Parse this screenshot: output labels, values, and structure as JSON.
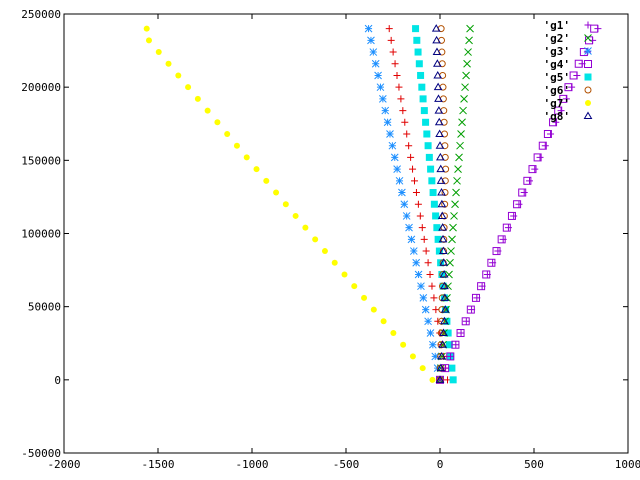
{
  "chart_data": {
    "type": "scatter",
    "title": "",
    "xlabel": "",
    "ylabel": "",
    "xlim": [
      -2000,
      1000
    ],
    "ylim": [
      -50000,
      250000
    ],
    "xticks": [
      "-2000",
      "-1500",
      "-1000",
      "-500",
      "0",
      "500",
      "1000"
    ],
    "yticks": [
      "-50000",
      "0",
      "50000",
      "100000",
      "150000",
      "200000",
      "250000"
    ],
    "xtick_values": [
      -2000,
      -1500,
      -1000,
      -500,
      0,
      500,
      1000
    ],
    "ytick_values": [
      -50000,
      0,
      50000,
      100000,
      150000,
      200000,
      250000
    ],
    "grid": false,
    "legend_position": "top-right",
    "y": [
      0,
      8000,
      16000,
      24000,
      32000,
      40000,
      48000,
      56000,
      64000,
      72000,
      80000,
      88000,
      96000,
      104000,
      112000,
      120000,
      128000,
      136000,
      144000,
      152000,
      160000,
      168000,
      176000,
      184000,
      192000,
      200000,
      208000,
      216000,
      224000,
      232000,
      240000
    ],
    "series": [
      {
        "name": "'g1'",
        "marker": "plus",
        "color": "#9400d3",
        "x": [
          0,
          28,
          56,
          84,
          112,
          140,
          168,
          196,
          224,
          252,
          280,
          308,
          336,
          364,
          392,
          420,
          448,
          476,
          504,
          532,
          560,
          588,
          616,
          644,
          672,
          700,
          728,
          756,
          784,
          812,
          840
        ]
      },
      {
        "name": "'g2'",
        "marker": "cross",
        "color": "#009e00",
        "x": [
          0,
          5.3,
          10.7,
          16,
          21.3,
          26.7,
          32,
          37.3,
          42.7,
          48,
          53.3,
          58.7,
          64,
          69.3,
          74.7,
          80,
          85.3,
          90.7,
          96,
          101.3,
          106.7,
          112,
          117.3,
          122.7,
          128,
          133.3,
          138.7,
          144,
          149.3,
          154.7,
          160
        ]
      },
      {
        "name": "'g3'",
        "marker": "star",
        "color": "#1e90ff",
        "x": [
          0,
          -12.7,
          -25.3,
          -38,
          -50.7,
          -63.3,
          -76,
          -88.7,
          -101.3,
          -114,
          -126.7,
          -139.3,
          -152,
          -164.7,
          -177.3,
          -190,
          -202.7,
          -215.3,
          -228,
          -240.7,
          -253.3,
          -266,
          -278.7,
          -291.3,
          -304,
          -316.7,
          -329.3,
          -342,
          -354.7,
          -367.3,
          -380
        ]
      },
      {
        "name": "'g4'",
        "marker": "box",
        "color": "#9400d3",
        "x": [
          0,
          27.3,
          54.7,
          82,
          109.3,
          136.7,
          164,
          191.3,
          218.7,
          246,
          273.3,
          300.7,
          328,
          355.3,
          382.7,
          410,
          437.3,
          464.7,
          492,
          519.3,
          546.7,
          574,
          601.3,
          628.7,
          656,
          683.3,
          710.7,
          738,
          765.3,
          792.7,
          820
        ]
      },
      {
        "name": "'g5'",
        "marker": "fbox",
        "color": "#00e5e5",
        "x": [
          70,
          63.3,
          56.7,
          50,
          43.3,
          36.7,
          30,
          23.3,
          16.7,
          10,
          3.3,
          -3.3,
          -10,
          -16.7,
          -23.3,
          -30,
          -36.7,
          -43.3,
          -50,
          -56.7,
          -63.3,
          -70,
          -76.7,
          -83.3,
          -90,
          -96.7,
          -103.3,
          -110,
          -116.7,
          -123.3,
          -130
        ]
      },
      {
        "name": "'g6'",
        "marker": "circle",
        "color": "#b25000",
        "x": [
          0,
          1.7,
          3.3,
          5,
          6.7,
          8.3,
          10,
          11.7,
          13.3,
          15,
          16.7,
          18.3,
          20,
          21.7,
          23.3,
          25,
          26.7,
          28.3,
          30,
          28,
          26,
          24,
          22,
          20,
          18,
          16,
          14,
          12,
          10,
          8,
          6
        ]
      },
      {
        "name": "'g7'",
        "marker": "fcircle",
        "color": "#ffff00",
        "x": [
          -40,
          -92,
          -144,
          -196,
          -248,
          -300,
          -352,
          -404,
          -456,
          -508,
          -560,
          -612,
          -664,
          -716,
          -768,
          -820,
          -872,
          -924,
          -976,
          -1028,
          -1080,
          -1132,
          -1184,
          -1236,
          -1288,
          -1340,
          -1392,
          -1444,
          -1496,
          -1548,
          -1560
        ]
      },
      {
        "name": "'g8'",
        "marker": "triangle",
        "color": "#000080",
        "x": [
          0,
          4.7,
          9.3,
          14,
          18.7,
          23.3,
          28,
          26,
          24,
          22,
          20,
          18,
          16,
          14,
          12,
          10,
          8,
          6,
          4,
          2,
          0,
          -2,
          -4,
          -6,
          -8,
          -10,
          -12,
          -14,
          -16,
          -18,
          -20
        ]
      }
    ],
    "red_plus": {
      "color": "#e00000",
      "x": [
        40,
        29.7,
        19.3,
        9,
        -1.3,
        -11.7,
        -22,
        -32.3,
        -42.7,
        -53,
        -63.3,
        -73.7,
        -84,
        -94.3,
        -104.7,
        -115,
        -125.3,
        -135.7,
        -146,
        -156.3,
        -166.7,
        -177,
        -187.3,
        -197.7,
        -208,
        -218.3,
        -228.7,
        -239,
        -249.3,
        -259.7,
        -270
      ]
    }
  }
}
